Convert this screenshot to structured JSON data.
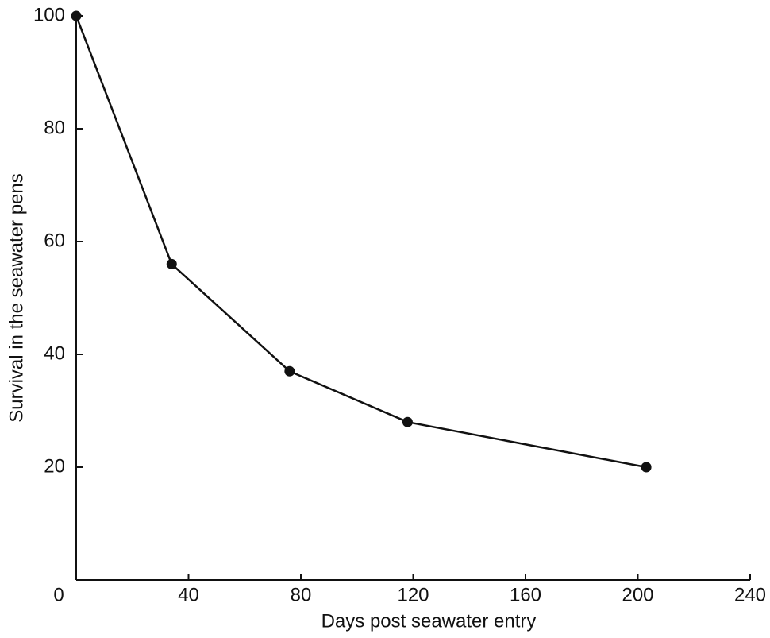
{
  "chart_data": {
    "type": "line",
    "x_label": "Days post seawater entry",
    "y_label": "Survival in the seawater pens",
    "x": [
      0,
      34,
      76,
      118,
      203
    ],
    "values": [
      100,
      56,
      37,
      28,
      20
    ],
    "color": "#111111",
    "xlim": [
      0,
      240
    ],
    "xticks": [
      0,
      40,
      80,
      120,
      160,
      200,
      240
    ],
    "ylim": [
      0,
      100
    ],
    "yticks": [
      20,
      40,
      60,
      80,
      100
    ],
    "grid": false
  }
}
